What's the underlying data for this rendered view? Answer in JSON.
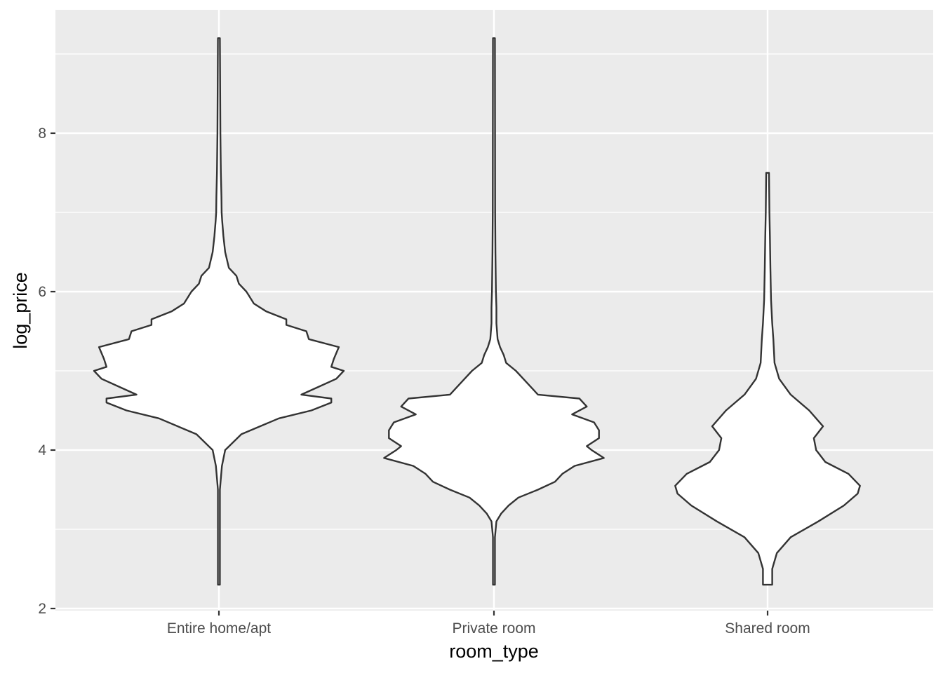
{
  "chart_data": {
    "type": "violin",
    "xlabel": "room_type",
    "ylabel": "log_price",
    "categories": [
      "Entire home/apt",
      "Private room",
      "Shared room"
    ],
    "ylim": [
      1.98,
      9.55
    ],
    "yticks": [
      2,
      4,
      6,
      8
    ],
    "grid": true,
    "legend": "none",
    "colors": {
      "panel": "#ebebeb",
      "grid": "#ffffff",
      "outline": "#333333",
      "fill": "#ffffff",
      "tick_text": "#4d4d4d",
      "tick_mark": "#333333"
    },
    "series": [
      {
        "category": "Entire home/apt",
        "y_range": [
          2.3,
          9.2
        ],
        "relative_width_max": 1.0,
        "density_profile": [
          [
            2.3,
            0.004
          ],
          [
            3.5,
            0.004
          ],
          [
            3.8,
            0.012
          ],
          [
            4.0,
            0.025
          ],
          [
            4.2,
            0.09
          ],
          [
            4.4,
            0.24
          ],
          [
            4.5,
            0.37
          ],
          [
            4.6,
            0.45
          ],
          [
            4.65,
            0.45
          ],
          [
            4.7,
            0.33
          ],
          [
            4.8,
            0.4
          ],
          [
            4.9,
            0.47
          ],
          [
            5.0,
            0.5
          ],
          [
            5.05,
            0.45
          ],
          [
            5.15,
            0.46
          ],
          [
            5.3,
            0.48
          ],
          [
            5.4,
            0.36
          ],
          [
            5.5,
            0.35
          ],
          [
            5.58,
            0.27
          ],
          [
            5.65,
            0.27
          ],
          [
            5.75,
            0.19
          ],
          [
            5.85,
            0.14
          ],
          [
            6.0,
            0.11
          ],
          [
            6.1,
            0.08
          ],
          [
            6.2,
            0.07
          ],
          [
            6.3,
            0.04
          ],
          [
            6.5,
            0.025
          ],
          [
            6.7,
            0.018
          ],
          [
            6.9,
            0.013
          ],
          [
            7.0,
            0.011
          ],
          [
            7.2,
            0.01
          ],
          [
            7.5,
            0.008
          ],
          [
            8.0,
            0.006
          ],
          [
            9.2,
            0.004
          ]
        ]
      },
      {
        "category": "Private room",
        "y_range": [
          2.3,
          9.2
        ],
        "relative_width_max": 0.88,
        "density_profile": [
          [
            2.3,
            0.004
          ],
          [
            2.9,
            0.004
          ],
          [
            3.1,
            0.01
          ],
          [
            3.2,
            0.03
          ],
          [
            3.3,
            0.06
          ],
          [
            3.4,
            0.1
          ],
          [
            3.5,
            0.18
          ],
          [
            3.6,
            0.25
          ],
          [
            3.7,
            0.28
          ],
          [
            3.8,
            0.33
          ],
          [
            3.9,
            0.45
          ],
          [
            4.0,
            0.4
          ],
          [
            4.05,
            0.38
          ],
          [
            4.15,
            0.43
          ],
          [
            4.25,
            0.43
          ],
          [
            4.35,
            0.41
          ],
          [
            4.45,
            0.32
          ],
          [
            4.55,
            0.38
          ],
          [
            4.65,
            0.35
          ],
          [
            4.7,
            0.18
          ],
          [
            4.8,
            0.15
          ],
          [
            4.9,
            0.12
          ],
          [
            5.0,
            0.09
          ],
          [
            5.1,
            0.05
          ],
          [
            5.2,
            0.04
          ],
          [
            5.3,
            0.025
          ],
          [
            5.4,
            0.015
          ],
          [
            5.6,
            0.01
          ],
          [
            5.8,
            0.01
          ],
          [
            6.0,
            0.008
          ],
          [
            6.5,
            0.006
          ],
          [
            7.0,
            0.005
          ],
          [
            9.2,
            0.004
          ]
        ]
      },
      {
        "category": "Shared room",
        "y_range": [
          2.3,
          7.5
        ],
        "relative_width_max": 0.74,
        "density_profile": [
          [
            2.3,
            0.02
          ],
          [
            2.5,
            0.02
          ],
          [
            2.7,
            0.04
          ],
          [
            2.9,
            0.1
          ],
          [
            3.1,
            0.22
          ],
          [
            3.3,
            0.33
          ],
          [
            3.45,
            0.39
          ],
          [
            3.55,
            0.4
          ],
          [
            3.7,
            0.35
          ],
          [
            3.85,
            0.25
          ],
          [
            4.0,
            0.21
          ],
          [
            4.15,
            0.2
          ],
          [
            4.3,
            0.24
          ],
          [
            4.5,
            0.18
          ],
          [
            4.7,
            0.1
          ],
          [
            4.9,
            0.05
          ],
          [
            5.1,
            0.03
          ],
          [
            5.4,
            0.025
          ],
          [
            5.6,
            0.02
          ],
          [
            5.9,
            0.015
          ],
          [
            6.3,
            0.012
          ],
          [
            6.7,
            0.01
          ],
          [
            7.0,
            0.008
          ],
          [
            7.5,
            0.006
          ]
        ]
      }
    ]
  }
}
